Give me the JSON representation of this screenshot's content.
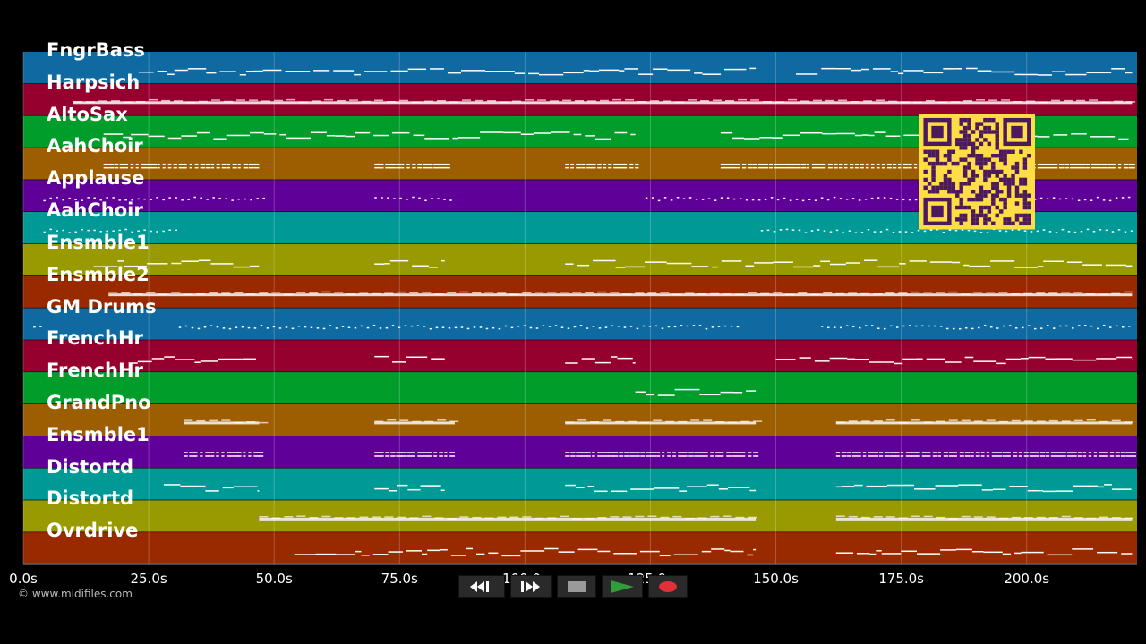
{
  "timeline": {
    "ticks": [
      "0.0s",
      "25.0s",
      "50.0s",
      "75.0s",
      "100.0s",
      "125.0s",
      "150.0s",
      "175.0s",
      "200.0s"
    ],
    "tick_values": [
      0,
      25,
      50,
      75,
      100,
      125,
      150,
      175,
      200
    ],
    "x_max_seconds": 222
  },
  "tracks": [
    {
      "name": "FngrBass",
      "color": "#0e6aa0",
      "pattern": "line",
      "spans": [
        [
          23,
          146
        ],
        [
          154,
          221
        ]
      ]
    },
    {
      "name": "Harpsich",
      "color": "#96002e",
      "pattern": "dense",
      "spans": [
        [
          10,
          221
        ]
      ]
    },
    {
      "name": "AltoSax",
      "color": "#009d2b",
      "pattern": "line",
      "spans": [
        [
          16,
          122
        ],
        [
          139,
          221
        ]
      ]
    },
    {
      "name": "AahChoir",
      "color": "#9c5e00",
      "pattern": "double",
      "spans": [
        [
          16,
          46
        ],
        [
          70,
          84
        ],
        [
          108,
          122
        ],
        [
          139,
          221
        ]
      ]
    },
    {
      "name": "Applause",
      "color": "#5f0098",
      "pattern": "dots",
      "spans": [
        [
          4,
          48
        ],
        [
          70,
          86
        ],
        [
          124,
          221
        ]
      ]
    },
    {
      "name": "AahChoir",
      "color": "#009a96",
      "pattern": "dots",
      "spans": [
        [
          4,
          31
        ],
        [
          147,
          221
        ]
      ]
    },
    {
      "name": "Ensmble1",
      "color": "#989a00",
      "pattern": "line",
      "spans": [
        [
          14,
          47
        ],
        [
          70,
          84
        ],
        [
          108,
          221
        ]
      ]
    },
    {
      "name": "Ensmble2",
      "color": "#992a00",
      "pattern": "dense",
      "spans": [
        [
          17,
          221
        ]
      ]
    },
    {
      "name": "GM Drums",
      "color": "#0e6aa0",
      "pattern": "dots",
      "spans": [
        [
          2,
          4
        ],
        [
          31,
          143
        ],
        [
          159,
          221
        ]
      ]
    },
    {
      "name": "FrenchHr",
      "color": "#96002e",
      "pattern": "line",
      "spans": [
        [
          21,
          47
        ],
        [
          70,
          84
        ],
        [
          108,
          122
        ],
        [
          150,
          221
        ]
      ]
    },
    {
      "name": "FrenchHr",
      "color": "#009d2b",
      "pattern": "line",
      "spans": [
        [
          122,
          146
        ]
      ]
    },
    {
      "name": "GrandPno",
      "color": "#9c5e00",
      "pattern": "dense",
      "spans": [
        [
          32,
          47
        ],
        [
          70,
          86
        ],
        [
          108,
          146
        ],
        [
          162,
          221
        ]
      ]
    },
    {
      "name": "Ensmble1",
      "color": "#5f0098",
      "pattern": "double",
      "spans": [
        [
          32,
          47
        ],
        [
          70,
          86
        ],
        [
          108,
          146
        ],
        [
          162,
          221
        ]
      ]
    },
    {
      "name": "Distortd",
      "color": "#009a96",
      "pattern": "line",
      "spans": [
        [
          28,
          47
        ],
        [
          70,
          84
        ],
        [
          108,
          146
        ],
        [
          162,
          221
        ]
      ]
    },
    {
      "name": "Distortd",
      "color": "#989a00",
      "pattern": "dense",
      "spans": [
        [
          47,
          146
        ],
        [
          162,
          221
        ]
      ]
    },
    {
      "name": "Ovrdrive",
      "color": "#992a00",
      "pattern": "line",
      "spans": [
        [
          54,
          146
        ],
        [
          162,
          221
        ]
      ]
    }
  ],
  "footer": {
    "copyright": "© www.midifiles.com"
  },
  "transport": {
    "rewind_icon": "rewind-icon",
    "fast_forward_icon": "fast-forward-icon",
    "stop_icon": "stop-icon",
    "play_icon": "play-icon",
    "record_icon": "record-icon",
    "accent_play": "#2e9d3a",
    "accent_record": "#e0303a"
  },
  "qr_code": {
    "color": "#ffdd44",
    "fg": "#4b1a5e"
  }
}
